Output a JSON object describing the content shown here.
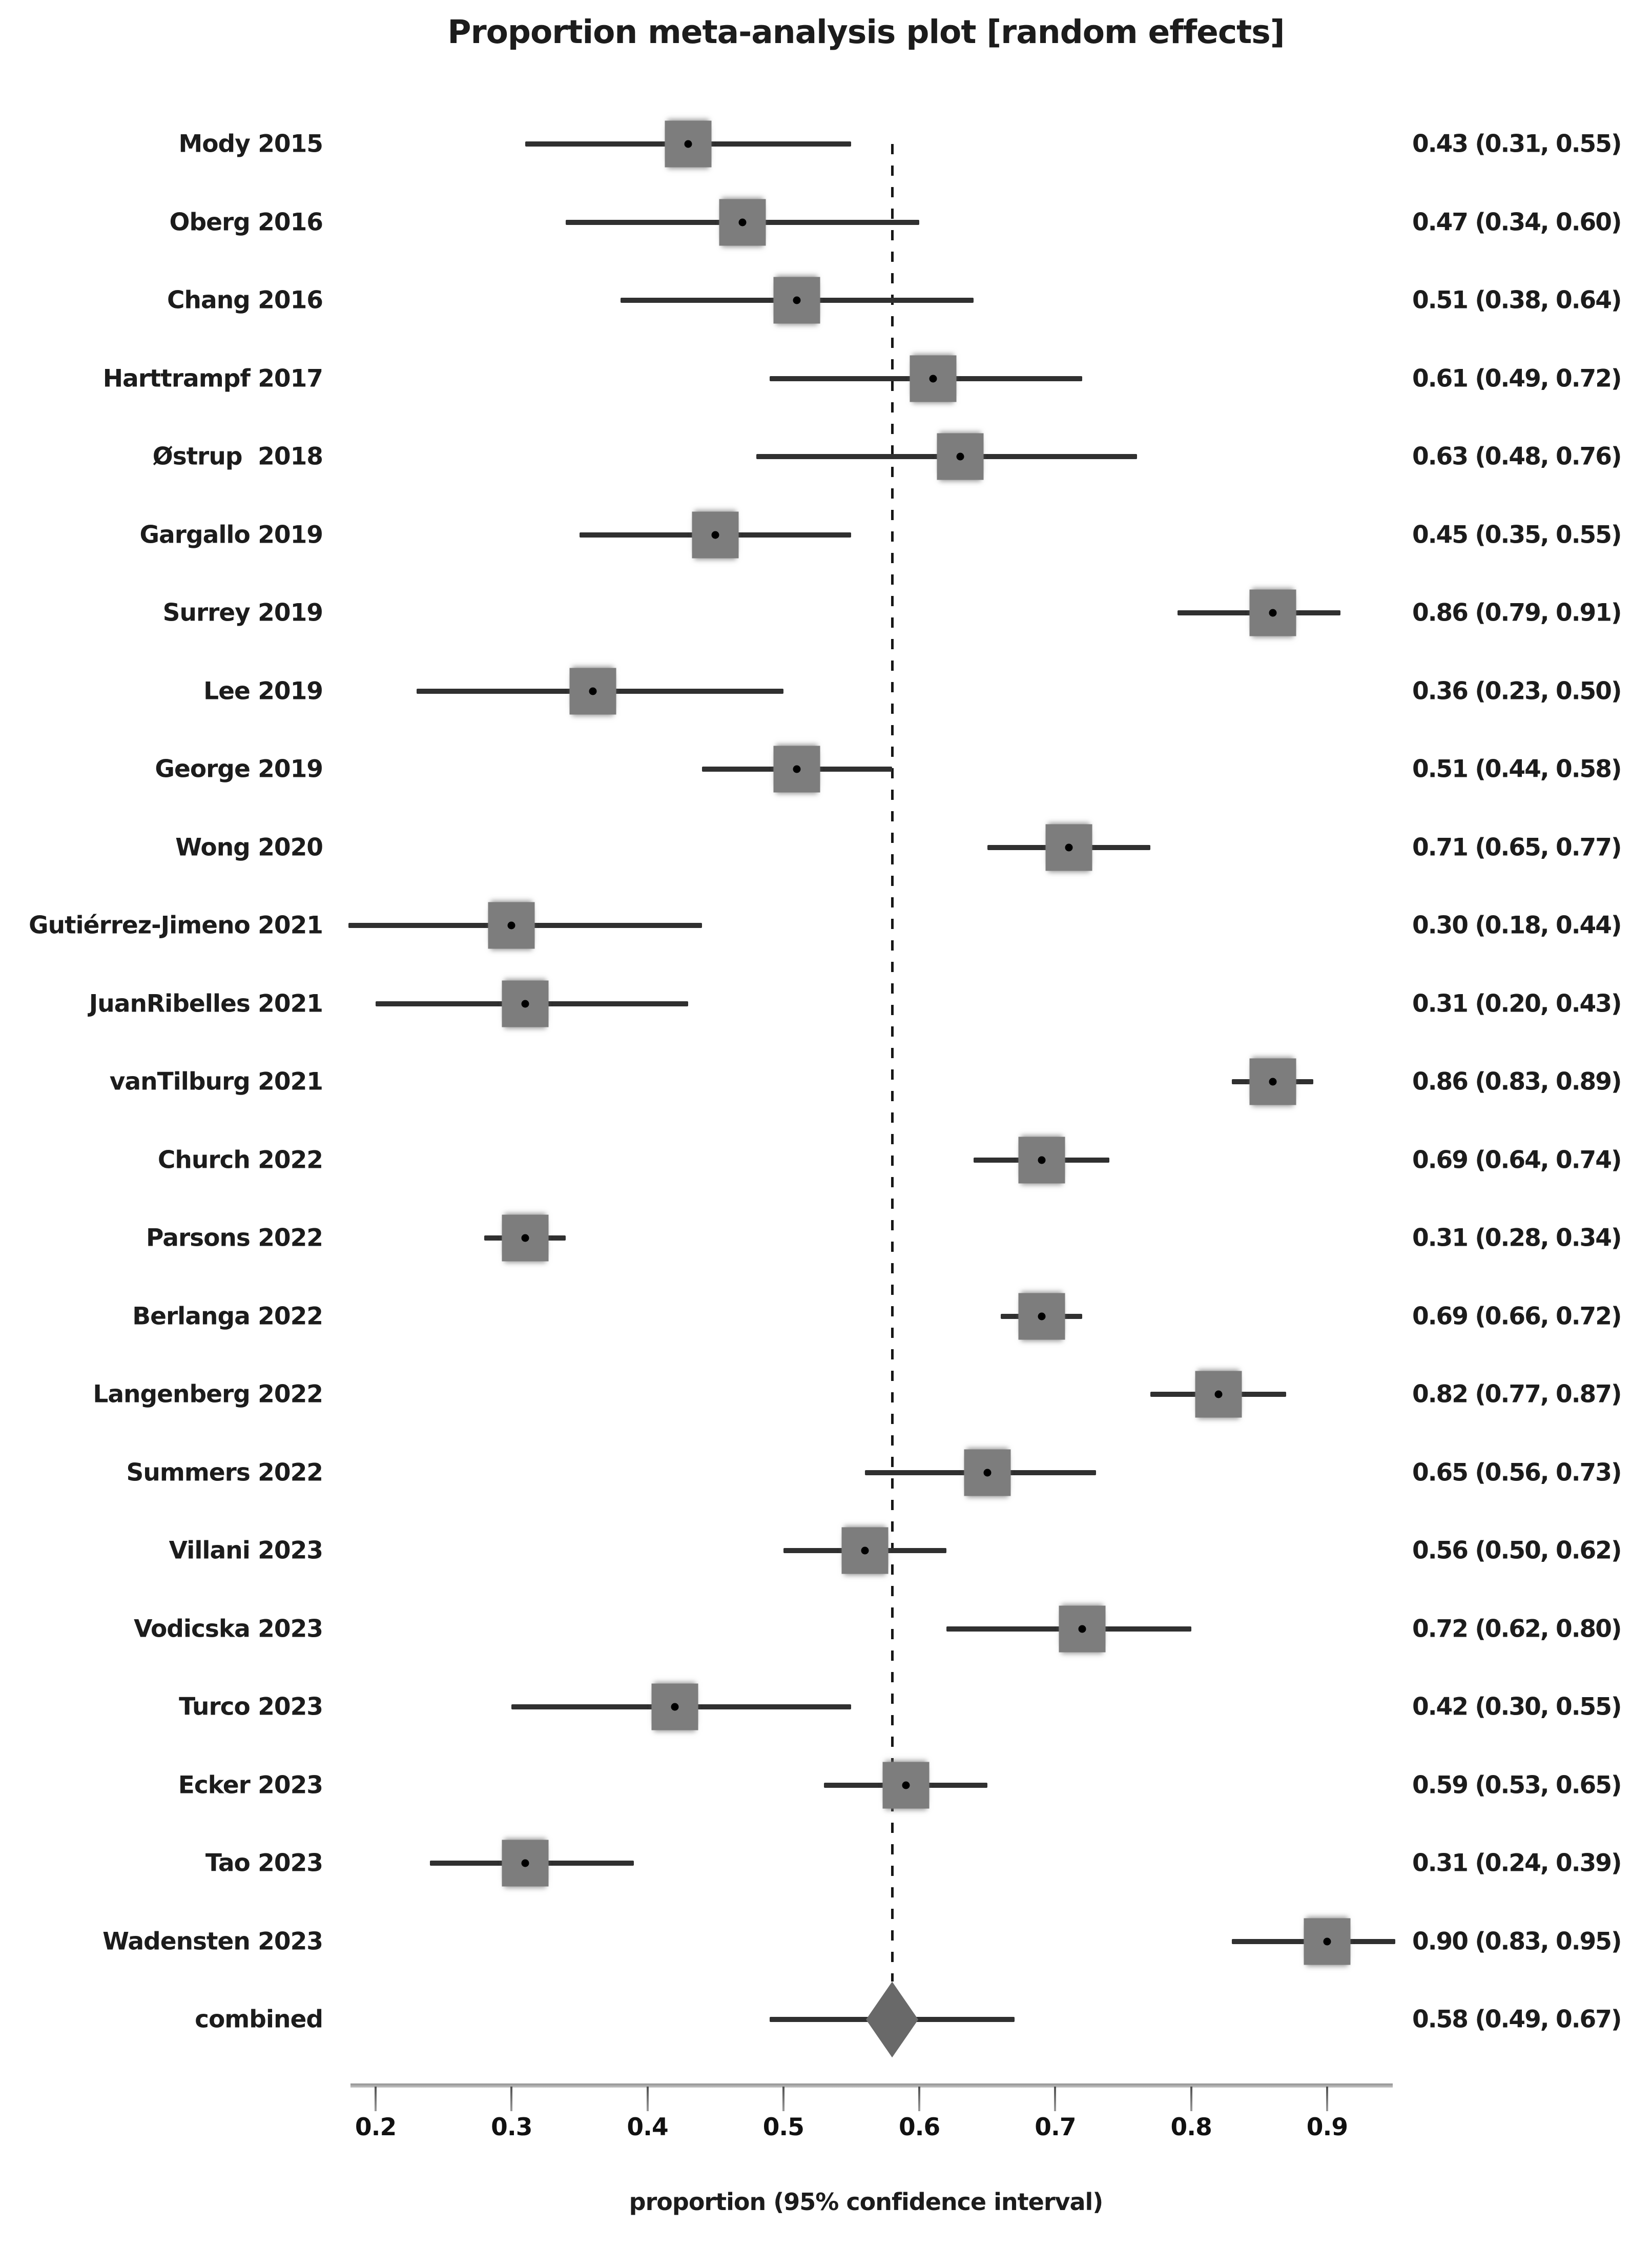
{
  "title": "Proportion meta-analysis plot [random effects]",
  "x_axis_label": "proportion (95% confidence interval)",
  "colors": {
    "ink": "#1c1c1c",
    "square": "#7d7d7d",
    "ciline": "#303030",
    "diamond": "#696969",
    "axisline": "#ababab",
    "tick": "#4f4f4f",
    "dash": "#161616"
  },
  "chart_data": {
    "type": "forest",
    "title": "Proportion meta-analysis plot [random effects]",
    "xlabel": "proportion (95% confidence interval)",
    "x_range": [
      0.1687,
      0.9528
    ],
    "tick_values": [
      0.2,
      0.3,
      0.4,
      0.5,
      0.6,
      0.7,
      0.8,
      0.9
    ],
    "tick_labels": [
      "0.2",
      "0.3",
      "0.4",
      "0.5",
      "0.6",
      "0.7",
      "0.8",
      "0.9"
    ],
    "reference_line": 0.58,
    "legend_position": "none",
    "grid": false,
    "studies": [
      {
        "label": "Mody 2015",
        "estimate": 0.43,
        "ci_lower": 0.31,
        "ci_upper": 0.55,
        "ci_text": "0.43 (0.31, 0.55)"
      },
      {
        "label": "Oberg 2016",
        "estimate": 0.47,
        "ci_lower": 0.34,
        "ci_upper": 0.6,
        "ci_text": "0.47 (0.34, 0.60)"
      },
      {
        "label": "Chang 2016",
        "estimate": 0.51,
        "ci_lower": 0.38,
        "ci_upper": 0.64,
        "ci_text": "0.51 (0.38, 0.64)"
      },
      {
        "label": "Harttrampf 2017",
        "estimate": 0.61,
        "ci_lower": 0.49,
        "ci_upper": 0.72,
        "ci_text": "0.61 (0.49, 0.72)"
      },
      {
        "label": "Østrup  2018",
        "estimate": 0.63,
        "ci_lower": 0.48,
        "ci_upper": 0.76,
        "ci_text": "0.63 (0.48, 0.76)"
      },
      {
        "label": "Gargallo 2019",
        "estimate": 0.45,
        "ci_lower": 0.35,
        "ci_upper": 0.55,
        "ci_text": "0.45 (0.35, 0.55)"
      },
      {
        "label": "Surrey 2019",
        "estimate": 0.86,
        "ci_lower": 0.79,
        "ci_upper": 0.91,
        "ci_text": "0.86 (0.79, 0.91)"
      },
      {
        "label": "Lee 2019",
        "estimate": 0.36,
        "ci_lower": 0.23,
        "ci_upper": 0.5,
        "ci_text": "0.36 (0.23, 0.50)"
      },
      {
        "label": "George 2019",
        "estimate": 0.51,
        "ci_lower": 0.44,
        "ci_upper": 0.58,
        "ci_text": "0.51 (0.44, 0.58)"
      },
      {
        "label": "Wong 2020",
        "estimate": 0.71,
        "ci_lower": 0.65,
        "ci_upper": 0.77,
        "ci_text": "0.71 (0.65, 0.77)"
      },
      {
        "label": "Gutiérrez-Jimeno 2021",
        "estimate": 0.3,
        "ci_lower": 0.18,
        "ci_upper": 0.44,
        "ci_text": "0.30 (0.18, 0.44)"
      },
      {
        "label": "JuanRibelles 2021",
        "estimate": 0.31,
        "ci_lower": 0.2,
        "ci_upper": 0.43,
        "ci_text": "0.31 (0.20, 0.43)"
      },
      {
        "label": "vanTilburg 2021",
        "estimate": 0.86,
        "ci_lower": 0.83,
        "ci_upper": 0.89,
        "ci_text": "0.86 (0.83, 0.89)"
      },
      {
        "label": "Church 2022",
        "estimate": 0.69,
        "ci_lower": 0.64,
        "ci_upper": 0.74,
        "ci_text": "0.69 (0.64, 0.74)"
      },
      {
        "label": "Parsons 2022",
        "estimate": 0.31,
        "ci_lower": 0.28,
        "ci_upper": 0.34,
        "ci_text": "0.31 (0.28, 0.34)"
      },
      {
        "label": "Berlanga 2022",
        "estimate": 0.69,
        "ci_lower": 0.66,
        "ci_upper": 0.72,
        "ci_text": "0.69 (0.66, 0.72)"
      },
      {
        "label": "Langenberg 2022",
        "estimate": 0.82,
        "ci_lower": 0.77,
        "ci_upper": 0.87,
        "ci_text": "0.82 (0.77, 0.87)"
      },
      {
        "label": "Summers 2022",
        "estimate": 0.65,
        "ci_lower": 0.56,
        "ci_upper": 0.73,
        "ci_text": "0.65 (0.56, 0.73)"
      },
      {
        "label": "Villani 2023",
        "estimate": 0.56,
        "ci_lower": 0.5,
        "ci_upper": 0.62,
        "ci_text": "0.56 (0.50, 0.62)"
      },
      {
        "label": "Vodicska 2023",
        "estimate": 0.72,
        "ci_lower": 0.62,
        "ci_upper": 0.8,
        "ci_text": "0.72 (0.62, 0.80)"
      },
      {
        "label": "Turco 2023",
        "estimate": 0.42,
        "ci_lower": 0.3,
        "ci_upper": 0.55,
        "ci_text": "0.42 (0.30, 0.55)"
      },
      {
        "label": "Ecker 2023",
        "estimate": 0.59,
        "ci_lower": 0.53,
        "ci_upper": 0.65,
        "ci_text": "0.59 (0.53, 0.65)"
      },
      {
        "label": "Tao 2023",
        "estimate": 0.31,
        "ci_lower": 0.24,
        "ci_upper": 0.39,
        "ci_text": "0.31 (0.24, 0.39)"
      },
      {
        "label": "Wadensten 2023",
        "estimate": 0.9,
        "ci_lower": 0.83,
        "ci_upper": 0.95,
        "ci_text": "0.90 (0.83, 0.95)"
      },
      {
        "label": "combined",
        "estimate": 0.58,
        "ci_lower": 0.49,
        "ci_upper": 0.67,
        "ci_text": "0.58 (0.49, 0.67)",
        "is_combined": true
      }
    ]
  }
}
